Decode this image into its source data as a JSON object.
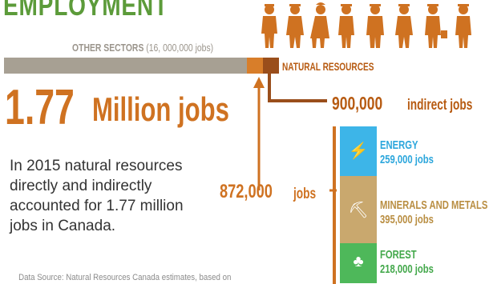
{
  "title": "EMPLOYMENT",
  "other_sectors": {
    "label": "OTHER SECTORS",
    "value": "(16, 000,000 jobs)"
  },
  "natural_resources_label": "NATURAL RESOURCES",
  "headline": {
    "number": "1.77",
    "unit": "Million jobs"
  },
  "body_text": "In 2015 natural resources directly and indirectly accounted for 1.77 million jobs in Canada.",
  "indirect": {
    "number": "900,000",
    "unit": "indirect jobs"
  },
  "direct": {
    "number": "872,000",
    "unit": "jobs"
  },
  "sectors": [
    {
      "name": "ENERGY",
      "value": "259,000 jobs",
      "icon": "lightning-bolt-icon",
      "glyph": "⚡",
      "color": "#3db5e8"
    },
    {
      "name": "MINERALS AND METALS",
      "value": "395,000 jobs",
      "icon": "mine-cart-icon",
      "glyph": "⛏",
      "color": "#c9a86e"
    },
    {
      "name": "FOREST",
      "value": "218,000 jobs",
      "icon": "tree-icon",
      "glyph": "♣",
      "color": "#4eb85a"
    }
  ],
  "source": "Data Source: Natural Resources Canada estimates, based on",
  "colors": {
    "title_green": "#5c9b3a",
    "orange": "#cf7221",
    "dark_orange": "#b75b12",
    "gray_bar": "#a7a093",
    "silhouette": "#cf7221"
  },
  "silhouette_icon": "worker-silhouettes-icon"
}
